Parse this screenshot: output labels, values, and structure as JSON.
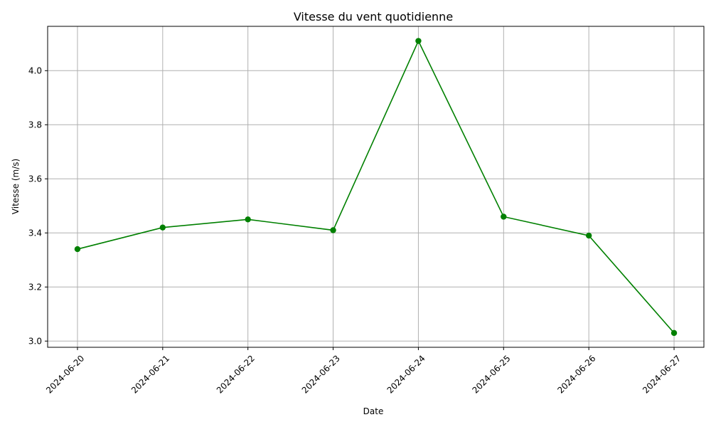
{
  "chart_data": {
    "type": "line",
    "title": "Vitesse du vent quotidienne",
    "xlabel": "Date",
    "ylabel": "Vitesse (m/s)",
    "x": [
      "2024-06-20",
      "2024-06-21",
      "2024-06-22",
      "2024-06-23",
      "2024-06-24",
      "2024-06-25",
      "2024-06-26",
      "2024-06-27"
    ],
    "series": [
      {
        "values": [
          3.34,
          3.42,
          3.45,
          3.41,
          4.11,
          3.46,
          3.39,
          3.03
        ],
        "color": "#008000",
        "marker": "circle"
      }
    ],
    "ylim": [
      2.977,
      4.164
    ],
    "yticks": [
      3.0,
      3.2,
      3.4,
      3.6,
      3.8,
      4.0
    ],
    "ytick_labels": [
      "3.0",
      "3.2",
      "3.4",
      "3.6",
      "3.8",
      "4.0"
    ],
    "grid": true,
    "x_tick_rotation": 45
  }
}
